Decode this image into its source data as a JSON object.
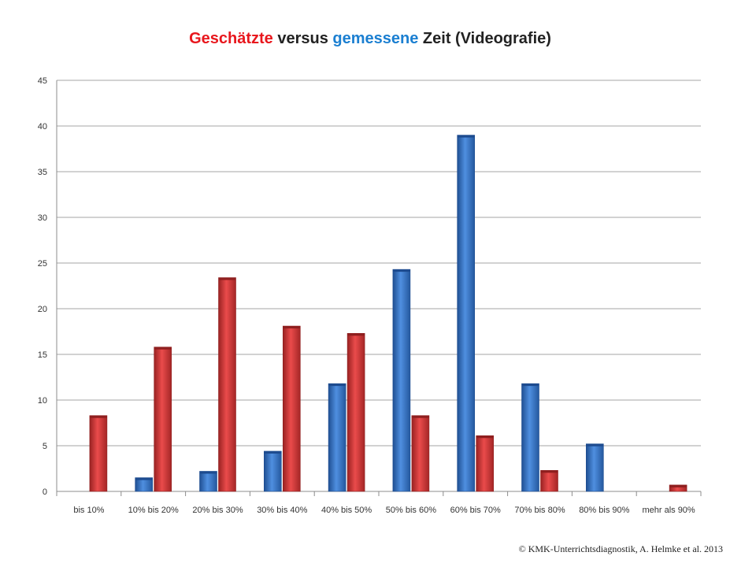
{
  "title": {
    "part1": "Geschätzte",
    "part2": " versus ",
    "part3": "gemessene",
    "part4": " Zeit (Videografie)"
  },
  "copyright": "© KMK-Unterrichtsdiagnostik, A. Helmke et al. 2013",
  "colors": {
    "title_red": "#e8171d",
    "title_blue": "#1b7fd1",
    "series_blue": "#3a78c9",
    "series_red": "#d63a3a",
    "grid": "#a6a6a6"
  },
  "chart_data": {
    "type": "bar",
    "categories": [
      "bis 10%",
      "10% bis 20%",
      "20% bis 30%",
      "30% bis 40%",
      "40% bis 50%",
      "50% bis 60%",
      "60% bis 70%",
      "70% bis 80%",
      "80% bis 90%",
      "mehr als 90%"
    ],
    "series": [
      {
        "color": "blue",
        "values": [
          0,
          1.5,
          2.2,
          4.4,
          11.8,
          24.3,
          39,
          11.8,
          5.2,
          0
        ]
      },
      {
        "color": "red",
        "values": [
          8.3,
          15.8,
          23.4,
          18.1,
          17.3,
          8.3,
          6.1,
          2.3,
          0,
          0.7
        ]
      }
    ],
    "ylim": [
      0,
      45
    ],
    "yticks": [
      0,
      5,
      10,
      15,
      20,
      25,
      30,
      35,
      40,
      45
    ],
    "grid": true,
    "legend": "none"
  }
}
